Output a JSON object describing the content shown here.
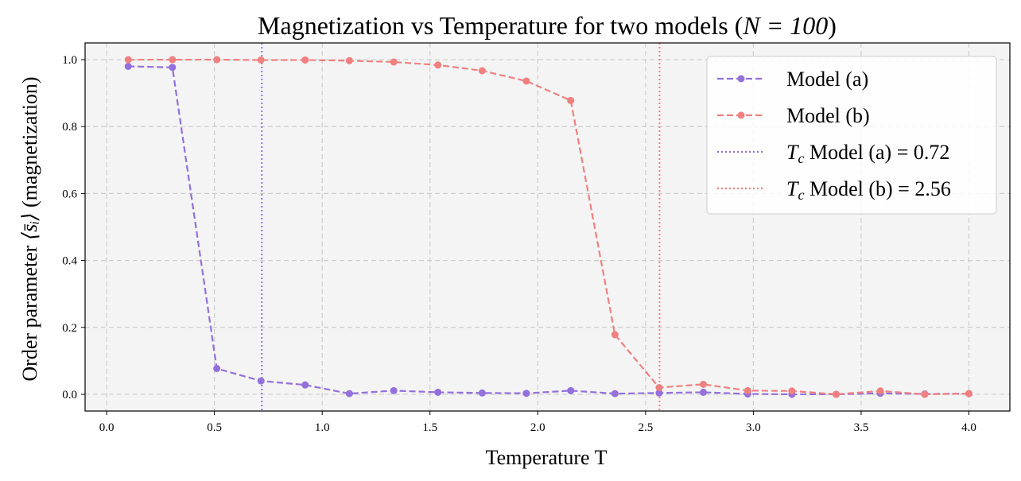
{
  "chart_data": {
    "type": "line",
    "title": "Magnetization vs Temperature for two models (",
    "title_math": "N = 100",
    "title_suffix": ")",
    "xlabel": "Temperature T",
    "ylabel_prefix": "Order parameter ",
    "ylabel_math": "⟨s̄ᵢ⟩",
    "ylabel_suffix": " (magnetization)",
    "xlim": [
      -0.1,
      4.19
    ],
    "ylim": [
      -0.05,
      1.05
    ],
    "x_ticks": [
      "0.0",
      "0.5",
      "1.0",
      "1.5",
      "2.0",
      "2.5",
      "3.0",
      "3.5",
      "4.0"
    ],
    "x_tick_values": [
      0,
      0.5,
      1.0,
      1.5,
      2.0,
      2.5,
      3.0,
      3.5,
      4.0
    ],
    "y_ticks": [
      "0.0",
      "0.2",
      "0.4",
      "0.6",
      "0.8",
      "1.0"
    ],
    "y_tick_values": [
      0,
      0.2,
      0.4,
      0.6,
      0.8,
      1.0
    ],
    "grid": true,
    "legend_position": "top-right",
    "background": "#f4f4f4",
    "x": [
      0.1,
      0.305,
      0.511,
      0.716,
      0.921,
      1.126,
      1.332,
      1.537,
      1.742,
      1.947,
      2.153,
      2.358,
      2.563,
      2.768,
      2.974,
      3.179,
      3.384,
      3.589,
      3.795,
      4.0
    ],
    "series": [
      {
        "name": "Model (a)",
        "color": "#9370db",
        "line_style": "dashed",
        "marker": "circle",
        "values": [
          0.98,
          0.977,
          0.077,
          0.04,
          0.028,
          0.002,
          0.011,
          0.006,
          0.004,
          0.003,
          0.011,
          0.002,
          0.004,
          0.006,
          0.001,
          0.0,
          0.0,
          0.003,
          0.001,
          0.002
        ]
      },
      {
        "name": "Model (b)",
        "color": "#f08080",
        "line_style": "dashed",
        "marker": "circle",
        "values": [
          1.0,
          1.0,
          1.0,
          0.999,
          0.999,
          0.997,
          0.993,
          0.984,
          0.967,
          0.936,
          0.878,
          0.178,
          0.02,
          0.03,
          0.011,
          0.01,
          0.0,
          0.01,
          0.0,
          0.002
        ]
      }
    ],
    "vlines": [
      {
        "name_math": "T_c",
        "label": " Model (a) = 0.72",
        "x": 0.72,
        "color": "#9370db",
        "line_style": "dotted"
      },
      {
        "name_math": "T_c",
        "label": " Model (b) = 2.56",
        "x": 2.565,
        "color": "#f08080",
        "line_style": "dotted"
      }
    ]
  }
}
